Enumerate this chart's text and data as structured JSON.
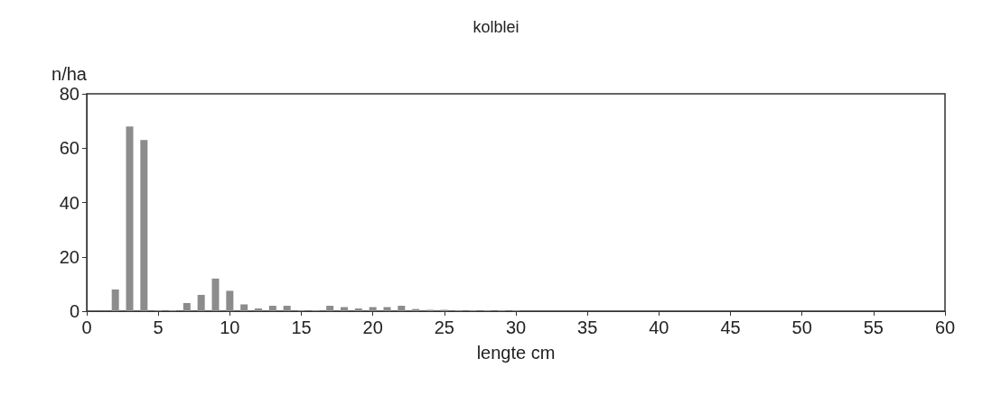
{
  "chart_data": {
    "type": "bar",
    "title": "kolblei",
    "xlabel": "lengte cm",
    "ylabel": "n/ha",
    "x": [
      2,
      3,
      4,
      5,
      6,
      7,
      8,
      9,
      10,
      11,
      12,
      13,
      14,
      15,
      16,
      17,
      18,
      19,
      20,
      21,
      22,
      23,
      24,
      25,
      26,
      27,
      28,
      29,
      30
    ],
    "values": [
      8,
      68,
      63,
      0.3,
      0.3,
      3,
      6,
      12,
      7.5,
      2.5,
      1,
      2,
      2,
      0.3,
      0.3,
      2,
      1.5,
      1,
      1.5,
      1.5,
      2,
      0.8,
      0.5,
      0.5,
      0.3,
      0.3,
      0.3,
      0.3,
      0.3
    ],
    "color": "#8c8c8c",
    "xlim": [
      0,
      60
    ],
    "xticks": [
      0,
      5,
      10,
      15,
      20,
      25,
      30,
      35,
      40,
      45,
      50,
      55,
      60
    ],
    "ylim": [
      0,
      80
    ],
    "yticks": [
      0,
      20,
      40,
      60,
      80
    ],
    "grid": false
  }
}
